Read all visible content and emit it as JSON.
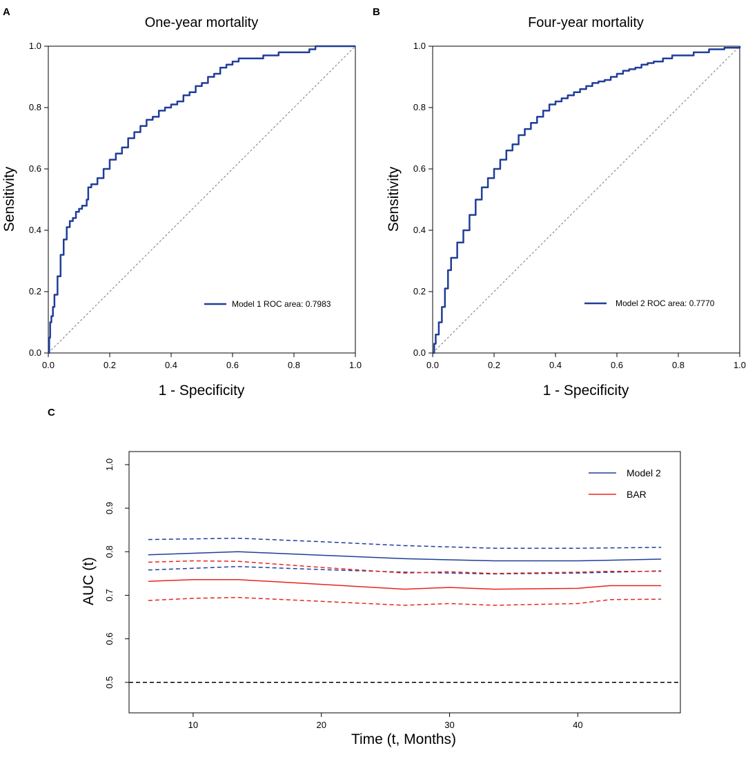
{
  "chart_data": [
    {
      "panel": "A",
      "type": "line",
      "title": "One-year mortality",
      "xlabel": "1 - Specificity",
      "ylabel": "Sensitivity",
      "xlim": [
        0,
        1
      ],
      "ylim": [
        0,
        1
      ],
      "xticks": [
        "0.0",
        "0.2",
        "0.4",
        "0.6",
        "0.8",
        "1.0"
      ],
      "yticks": [
        "0.0",
        "0.2",
        "0.4",
        "0.6",
        "0.8",
        "1.0"
      ],
      "legend_position": "bottom-right",
      "series": [
        {
          "name": "Model 1 ROC area: 0.7983",
          "color": "#1f3d99",
          "style": "solid",
          "x": [
            0,
            0.003,
            0.006,
            0.01,
            0.015,
            0.02,
            0.03,
            0.04,
            0.05,
            0.06,
            0.07,
            0.08,
            0.09,
            0.1,
            0.11,
            0.12,
            0.125,
            0.13,
            0.14,
            0.16,
            0.18,
            0.2,
            0.22,
            0.24,
            0.26,
            0.28,
            0.3,
            0.32,
            0.34,
            0.36,
            0.38,
            0.4,
            0.42,
            0.44,
            0.46,
            0.48,
            0.5,
            0.52,
            0.54,
            0.56,
            0.58,
            0.6,
            0.62,
            0.66,
            0.7,
            0.75,
            0.8,
            0.85,
            0.87,
            0.9,
            1.0
          ],
          "y": [
            0,
            0.05,
            0.1,
            0.12,
            0.15,
            0.19,
            0.25,
            0.32,
            0.37,
            0.41,
            0.43,
            0.44,
            0.46,
            0.47,
            0.48,
            0.48,
            0.5,
            0.54,
            0.55,
            0.57,
            0.6,
            0.63,
            0.65,
            0.67,
            0.7,
            0.72,
            0.74,
            0.76,
            0.77,
            0.79,
            0.8,
            0.81,
            0.82,
            0.84,
            0.85,
            0.87,
            0.88,
            0.9,
            0.91,
            0.93,
            0.94,
            0.95,
            0.96,
            0.96,
            0.97,
            0.98,
            0.98,
            0.99,
            1.0,
            1.0,
            1.0
          ]
        },
        {
          "name": "Reference line",
          "color": "#888888",
          "style": "dotted",
          "x": [
            0,
            1
          ],
          "y": [
            0,
            1
          ]
        }
      ]
    },
    {
      "panel": "B",
      "type": "line",
      "title": "Four-year mortality",
      "xlabel": "1 - Specificity",
      "ylabel": "Sensitivity",
      "xlim": [
        0,
        1
      ],
      "ylim": [
        0,
        1
      ],
      "xticks": [
        "0.0",
        "0.2",
        "0.4",
        "0.6",
        "0.8",
        "1.0"
      ],
      "yticks": [
        "0.0",
        "0.2",
        "0.4",
        "0.6",
        "0.8",
        "1.0"
      ],
      "legend_position": "bottom-right",
      "series": [
        {
          "name": "Model 2 ROC area: 0.7770",
          "color": "#1f3d99",
          "style": "solid",
          "x": [
            0,
            0.005,
            0.01,
            0.02,
            0.03,
            0.04,
            0.05,
            0.06,
            0.08,
            0.1,
            0.12,
            0.14,
            0.16,
            0.18,
            0.2,
            0.22,
            0.24,
            0.26,
            0.28,
            0.3,
            0.32,
            0.34,
            0.36,
            0.38,
            0.4,
            0.42,
            0.44,
            0.46,
            0.48,
            0.5,
            0.52,
            0.54,
            0.56,
            0.58,
            0.6,
            0.62,
            0.64,
            0.66,
            0.68,
            0.7,
            0.72,
            0.75,
            0.78,
            0.8,
            0.85,
            0.9,
            0.95,
            1.0
          ],
          "y": [
            0,
            0.03,
            0.06,
            0.1,
            0.15,
            0.21,
            0.27,
            0.31,
            0.36,
            0.4,
            0.45,
            0.5,
            0.54,
            0.57,
            0.6,
            0.63,
            0.66,
            0.68,
            0.71,
            0.73,
            0.75,
            0.77,
            0.79,
            0.81,
            0.82,
            0.83,
            0.84,
            0.85,
            0.86,
            0.87,
            0.88,
            0.885,
            0.89,
            0.9,
            0.91,
            0.92,
            0.925,
            0.93,
            0.94,
            0.945,
            0.95,
            0.96,
            0.97,
            0.97,
            0.98,
            0.99,
            0.995,
            1.0
          ]
        },
        {
          "name": "Reference line",
          "color": "#888888",
          "style": "dotted",
          "x": [
            0,
            1
          ],
          "y": [
            0,
            1
          ]
        }
      ]
    },
    {
      "panel": "C",
      "type": "line",
      "title": "",
      "xlabel": "Time (t, Months)",
      "ylabel": "AUC (t)",
      "xlim": [
        5,
        48
      ],
      "ylim": [
        0.43,
        1.03
      ],
      "xticks": [
        10,
        20,
        30,
        40
      ],
      "yticks": [
        "0.5",
        "0.6",
        "0.7",
        "0.8",
        "0.9",
        "1.0"
      ],
      "legend_position": "top-right",
      "legend": [
        {
          "label": "Model 2",
          "color": "#1f3d99"
        },
        {
          "label": "BAR",
          "color": "#e8231c"
        }
      ],
      "series": [
        {
          "name": "Model 2",
          "color": "#1f3d99",
          "style": "solid",
          "x": [
            6.5,
            13.5,
            20,
            26.5,
            33.5,
            40,
            46.5
          ],
          "y": [
            0.793,
            0.8,
            0.792,
            0.784,
            0.779,
            0.779,
            0.783
          ]
        },
        {
          "name": "Model 2 upper CI",
          "color": "#1f3d99",
          "style": "dashed",
          "x": [
            6.5,
            13.5,
            20,
            26.5,
            33.5,
            40,
            46.5
          ],
          "y": [
            0.828,
            0.831,
            0.823,
            0.814,
            0.808,
            0.808,
            0.81
          ]
        },
        {
          "name": "Model 2 lower CI",
          "color": "#1f3d99",
          "style": "dashed",
          "x": [
            6.5,
            13.5,
            20,
            26.5,
            33.5,
            40,
            46.5
          ],
          "y": [
            0.758,
            0.766,
            0.759,
            0.753,
            0.749,
            0.751,
            0.756
          ]
        },
        {
          "name": "BAR",
          "color": "#e8231c",
          "style": "solid",
          "x": [
            6.5,
            10,
            13.5,
            20,
            26.5,
            30,
            33.5,
            40,
            42.5,
            46.5
          ],
          "y": [
            0.732,
            0.736,
            0.736,
            0.725,
            0.714,
            0.718,
            0.714,
            0.716,
            0.722,
            0.722
          ]
        },
        {
          "name": "BAR upper CI",
          "color": "#e8231c",
          "style": "dashed",
          "x": [
            6.5,
            10,
            13.5,
            20,
            26.5,
            30,
            33.5,
            40,
            42.5,
            46.5
          ],
          "y": [
            0.776,
            0.779,
            0.778,
            0.764,
            0.751,
            0.754,
            0.75,
            0.753,
            0.755,
            0.755
          ]
        },
        {
          "name": "BAR lower CI",
          "color": "#e8231c",
          "style": "dashed",
          "x": [
            6.5,
            10,
            13.5,
            20,
            26.5,
            30,
            33.5,
            40,
            42.5,
            46.5
          ],
          "y": [
            0.688,
            0.693,
            0.695,
            0.686,
            0.677,
            0.681,
            0.677,
            0.681,
            0.69,
            0.691
          ]
        },
        {
          "name": "Reference 0.5",
          "color": "#000000",
          "style": "dashed",
          "x": [
            5,
            48
          ],
          "y": [
            0.5,
            0.5
          ]
        }
      ]
    }
  ]
}
